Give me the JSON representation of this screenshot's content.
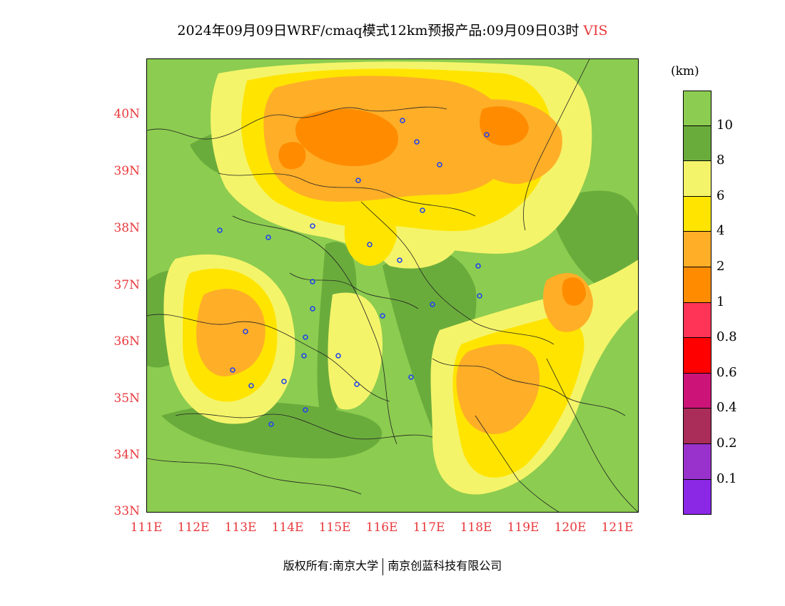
{
  "title": {
    "main": "2024年09月09日WRF/cmaq模式12km预报产品:09月09日03时",
    "variable": "VIS"
  },
  "axes": {
    "lat_labels": [
      "40N",
      "39N",
      "38N",
      "37N",
      "36N",
      "35N",
      "34N",
      "33N"
    ],
    "lon_labels": [
      "111E",
      "112E",
      "113E",
      "114E",
      "115E",
      "116E",
      "117E",
      "118E",
      "119E",
      "120E",
      "121E"
    ]
  },
  "legend": {
    "unit": "(km)",
    "levels": [
      "10",
      "8",
      "6",
      "4",
      "2",
      "1",
      "0.8",
      "0.6",
      "0.4",
      "0.2",
      "0.1"
    ],
    "colors": [
      "#8ccc50",
      "#6aac3c",
      "#f4f46a",
      "#ffe400",
      "#ffae28",
      "#ff8c00",
      "#ff3456",
      "#ff0000",
      "#cc1478",
      "#aa2c58",
      "#9932cc",
      "#8a28e6"
    ]
  },
  "footer": {
    "left": "版权所有:南京大学",
    "right": "南京创蓝科技有限公司"
  }
}
